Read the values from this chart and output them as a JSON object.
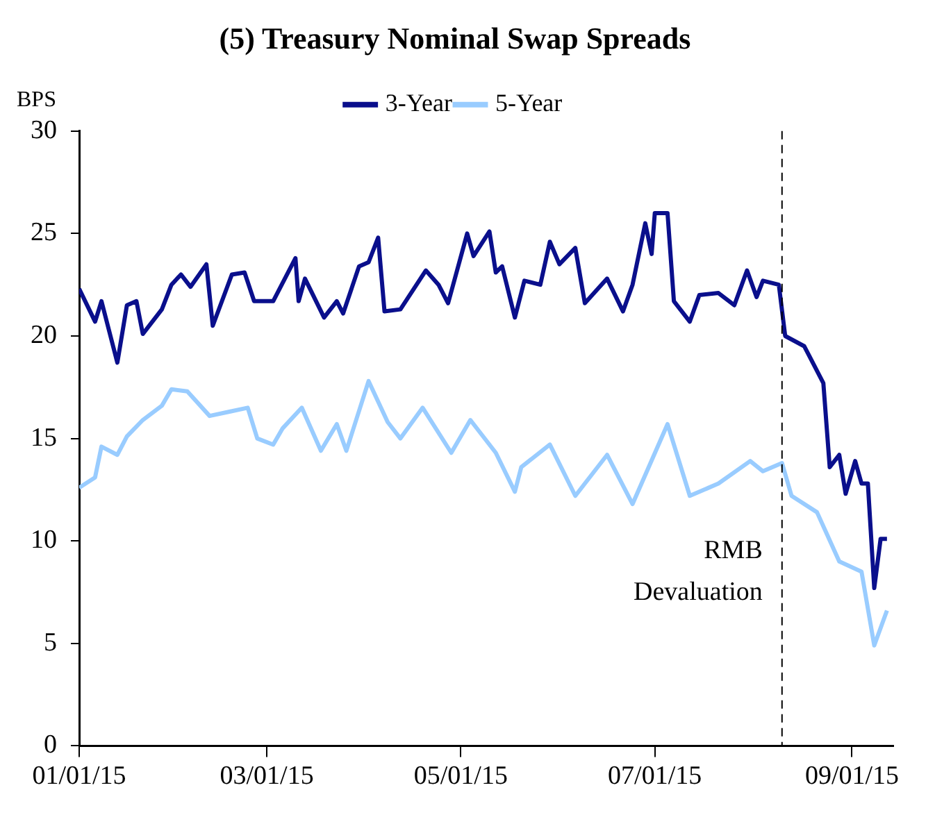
{
  "chart_data": {
    "type": "line",
    "title": "(5) Treasury Nominal Swap Spreads",
    "ylabel": "BPS",
    "legend": "top",
    "grid": false,
    "marker": "none",
    "line_style": "solid",
    "ylim": [
      0,
      30
    ],
    "yticks": [
      0,
      5,
      10,
      15,
      20,
      25,
      30
    ],
    "xlim": [
      "2015-01-01",
      "2015-09-14"
    ],
    "xticks": [
      {
        "value": "2015-01-01",
        "label": "01/01/15"
      },
      {
        "value": "2015-03-01",
        "label": "03/01/15"
      },
      {
        "value": "2015-05-01",
        "label": "05/01/15"
      },
      {
        "value": "2015-07-01",
        "label": "07/01/15"
      },
      {
        "value": "2015-09-01",
        "label": "09/01/15"
      }
    ],
    "ref_lines": [
      {
        "axis": "x",
        "value": "2015-08-10",
        "label": "RMB Devaluation",
        "color": "#000000",
        "line_style": "dashed"
      }
    ],
    "series": [
      {
        "name": "3-Year",
        "color": "#0a0f8c",
        "x": [
          "2015-01-01",
          "2015-01-06",
          "2015-01-08",
          "2015-01-13",
          "2015-01-16",
          "2015-01-19",
          "2015-01-21",
          "2015-01-27",
          "2015-01-30",
          "2015-02-02",
          "2015-02-05",
          "2015-02-10",
          "2015-02-12",
          "2015-02-18",
          "2015-02-22",
          "2015-02-25",
          "2015-03-03",
          "2015-03-10",
          "2015-03-11",
          "2015-03-13",
          "2015-03-19",
          "2015-03-23",
          "2015-03-25",
          "2015-03-30",
          "2015-04-02",
          "2015-04-05",
          "2015-04-07",
          "2015-04-12",
          "2015-04-20",
          "2015-04-24",
          "2015-04-27",
          "2015-05-03",
          "2015-05-05",
          "2015-05-10",
          "2015-05-12",
          "2015-05-14",
          "2015-05-18",
          "2015-05-21",
          "2015-05-26",
          "2015-05-29",
          "2015-06-01",
          "2015-06-06",
          "2015-06-09",
          "2015-06-16",
          "2015-06-21",
          "2015-06-24",
          "2015-06-28",
          "2015-06-30",
          "2015-07-01",
          "2015-07-05",
          "2015-07-07",
          "2015-07-12",
          "2015-07-15",
          "2015-07-21",
          "2015-07-26",
          "2015-07-30",
          "2015-08-02",
          "2015-08-04",
          "2015-08-09",
          "2015-08-11",
          "2015-08-17",
          "2015-08-23",
          "2015-08-25",
          "2015-08-28",
          "2015-08-30",
          "2015-09-02",
          "2015-09-04",
          "2015-09-06",
          "2015-09-08",
          "2015-09-10",
          "2015-09-12"
        ],
        "values": [
          22.3,
          20.7,
          21.7,
          18.7,
          21.5,
          21.7,
          20.1,
          21.3,
          22.5,
          23.0,
          22.4,
          23.5,
          20.5,
          23.0,
          23.1,
          21.7,
          21.7,
          23.8,
          21.7,
          22.8,
          20.9,
          21.7,
          21.1,
          23.4,
          23.6,
          24.8,
          21.2,
          21.3,
          23.2,
          22.5,
          21.6,
          25.0,
          23.9,
          25.1,
          23.1,
          23.4,
          20.9,
          22.7,
          22.5,
          24.6,
          23.5,
          24.3,
          21.6,
          22.8,
          21.2,
          22.5,
          25.5,
          24.0,
          26.0,
          26.0,
          21.7,
          20.7,
          22.0,
          22.1,
          21.5,
          23.2,
          21.9,
          22.7,
          22.5,
          20.0,
          19.5,
          17.7,
          13.6,
          14.2,
          12.3,
          13.9,
          12.8,
          12.8,
          7.7,
          10.1,
          10.1
        ]
      },
      {
        "name": "5-Year",
        "color": "#99ccff",
        "x": [
          "2015-01-01",
          "2015-01-06",
          "2015-01-08",
          "2015-01-13",
          "2015-01-16",
          "2015-01-21",
          "2015-01-27",
          "2015-01-30",
          "2015-02-04",
          "2015-02-11",
          "2015-02-17",
          "2015-02-23",
          "2015-02-26",
          "2015-03-03",
          "2015-03-06",
          "2015-03-12",
          "2015-03-18",
          "2015-03-23",
          "2015-03-26",
          "2015-04-02",
          "2015-04-08",
          "2015-04-12",
          "2015-04-19",
          "2015-04-28",
          "2015-05-04",
          "2015-05-12",
          "2015-05-18",
          "2015-05-20",
          "2015-05-29",
          "2015-06-06",
          "2015-06-16",
          "2015-06-24",
          "2015-07-05",
          "2015-07-12",
          "2015-07-21",
          "2015-07-31",
          "2015-08-04",
          "2015-08-10",
          "2015-08-13",
          "2015-08-21",
          "2015-08-28",
          "2015-09-04",
          "2015-09-08",
          "2015-09-12"
        ],
        "values": [
          12.6,
          13.1,
          14.6,
          14.2,
          15.1,
          15.9,
          16.6,
          17.4,
          17.3,
          16.1,
          16.3,
          16.5,
          15.0,
          14.7,
          15.5,
          16.5,
          14.4,
          15.7,
          14.4,
          17.8,
          15.8,
          15.0,
          16.5,
          14.3,
          15.9,
          14.3,
          12.4,
          13.6,
          14.7,
          12.2,
          14.2,
          11.8,
          15.7,
          12.2,
          12.8,
          13.9,
          13.4,
          13.8,
          12.2,
          11.4,
          9.0,
          8.5,
          4.9,
          6.6
        ]
      }
    ]
  }
}
